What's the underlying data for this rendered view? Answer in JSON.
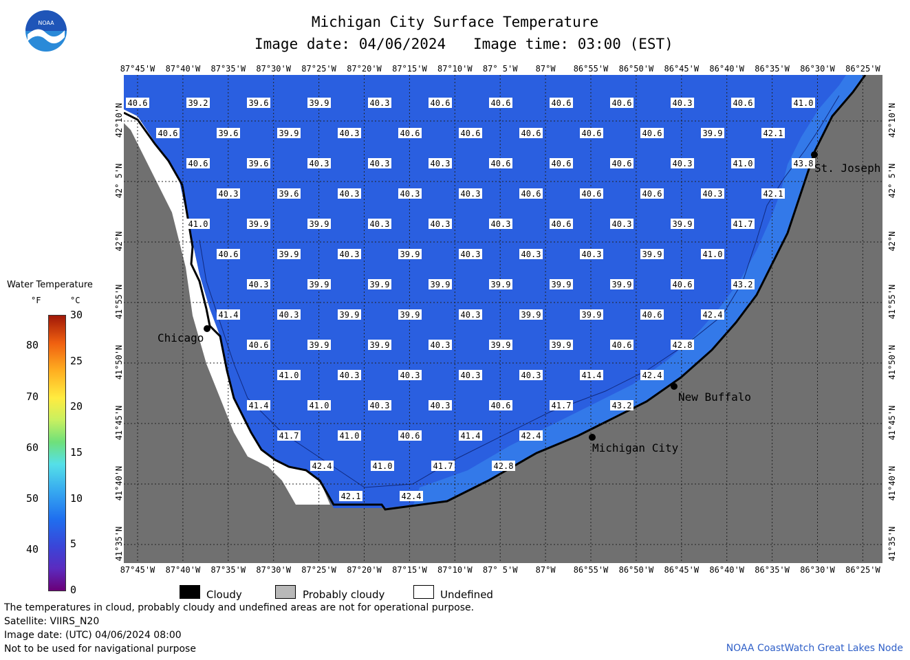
{
  "header": {
    "title": "Michigan City Surface Temperature",
    "image_date": "Image date: 04/06/2024",
    "image_time": "Image time: 03:00 (EST)"
  },
  "logo": {
    "text": "NOAA",
    "colors": {
      "top": "#2060c0",
      "bottom": "#2a8ad8",
      "bird": "#ffffff"
    }
  },
  "axes": {
    "lon_labels": [
      "87°45'W",
      "87°40'W",
      "87°35'W",
      "87°30'W",
      "87°25'W",
      "87°20'W",
      "87°15'W",
      "87°10'W",
      "87° 5'W",
      "87°W",
      "86°55'W",
      "86°50'W",
      "86°45'W",
      "86°40'W",
      "86°35'W",
      "86°30'W",
      "86°25'W"
    ],
    "lat_labels": [
      "42°10'N",
      "42° 5'N",
      "42°N",
      "41°55'N",
      "41°50'N",
      "41°45'N",
      "41°40'N",
      "41°35'N"
    ]
  },
  "colors": {
    "water": "#2a5fe0",
    "land": "#707070",
    "undefined": "#ffffff",
    "coast": "#000000"
  },
  "temperature_rows": [
    [
      "40.6",
      "39.2",
      "39.6",
      "39.9",
      "40.3",
      "40.6",
      "40.6",
      "40.6",
      "40.6",
      "40.3",
      "40.6",
      "41.0"
    ],
    [
      "40.6",
      "39.6",
      "39.9",
      "40.3",
      "40.6",
      "40.6",
      "40.6",
      "40.6",
      "40.6",
      "39.9",
      "42.1"
    ],
    [
      "40.6",
      "39.6",
      "40.3",
      "40.3",
      "40.3",
      "40.6",
      "40.6",
      "40.6",
      "40.3",
      "41.0",
      "43.8"
    ],
    [
      "40.3",
      "39.6",
      "40.3",
      "40.3",
      "40.3",
      "40.6",
      "40.6",
      "40.6",
      "40.3",
      "42.1"
    ],
    [
      "41.0",
      "39.9",
      "39.9",
      "40.3",
      "40.3",
      "40.3",
      "40.6",
      "40.3",
      "39.9",
      "41.7"
    ],
    [
      "40.6",
      "39.9",
      "40.3",
      "39.9",
      "40.3",
      "40.3",
      "40.3",
      "39.9",
      "41.0"
    ],
    [
      "40.3",
      "39.9",
      "39.9",
      "39.9",
      "39.9",
      "39.9",
      "39.9",
      "40.6",
      "43.2"
    ],
    [
      "41.4",
      "40.3",
      "39.9",
      "39.9",
      "40.3",
      "39.9",
      "39.9",
      "40.6",
      "42.4"
    ],
    [
      "40.6",
      "39.9",
      "39.9",
      "40.3",
      "39.9",
      "39.9",
      "40.6",
      "42.8"
    ],
    [
      "41.0",
      "40.3",
      "40.3",
      "40.3",
      "40.3",
      "41.4",
      "42.4"
    ],
    [
      "41.4",
      "41.0",
      "40.3",
      "40.3",
      "40.6",
      "41.7",
      "43.2"
    ],
    [
      "41.7",
      "41.0",
      "40.6",
      "41.4",
      "42.4"
    ],
    [
      "42.4",
      "41.0",
      "41.7",
      "42.8"
    ],
    [
      "42.1",
      "42.4"
    ]
  ],
  "cities": [
    "St. Joseph",
    "Chicago",
    "New Buffalo",
    "Michigan City"
  ],
  "legend": {
    "title": "Water Temperature",
    "unit_f": "°F",
    "unit_c": "°C",
    "ticks_f": [
      "80",
      "70",
      "60",
      "50",
      "40"
    ],
    "ticks_c": [
      "30",
      "25",
      "20",
      "15",
      "10",
      "5",
      "0"
    ],
    "range_f": [
      32,
      86
    ],
    "range_c": [
      0,
      30
    ]
  },
  "key": {
    "cloudy": "Cloudy",
    "probably_cloudy": "Probably cloudy",
    "undefined": "Undefined"
  },
  "notes": [
    "The temperatures in cloud, probably cloudy and undefined areas are not for operational purpose.",
    "Satellite: VIIRS_N20",
    "Image date: (UTC) 04/06/2024  08:00",
    "Not to be used for navigational purpose"
  ],
  "credit": "NOAA CoastWatch Great Lakes Node"
}
